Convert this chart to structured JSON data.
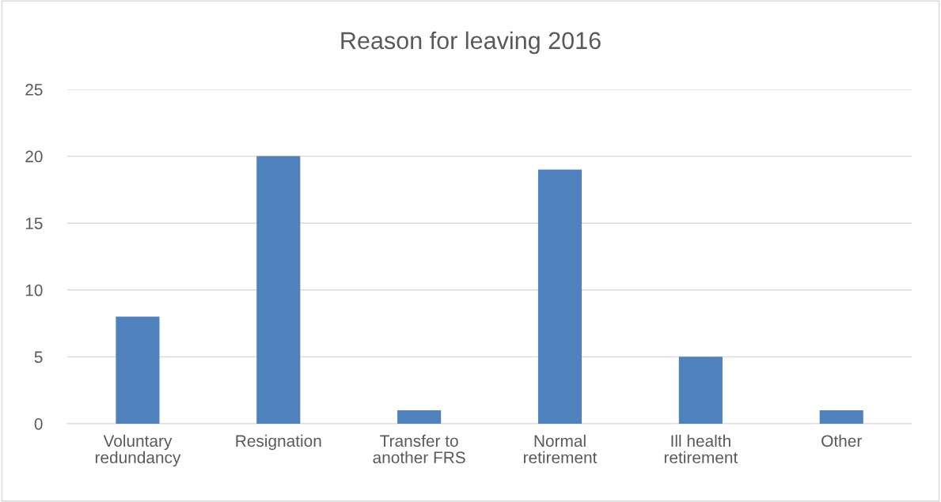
{
  "chart_data": {
    "type": "bar",
    "title": "Reason for leaving 2016",
    "categories": [
      "Voluntary\nredundancy",
      "Resignation",
      "Transfer to\nanother FRS",
      "Normal\nretirement",
      "Ill health\nretirement",
      "Other"
    ],
    "values": [
      8,
      20,
      1,
      19,
      5,
      1
    ],
    "color": "#4f81bd",
    "ylim": [
      0,
      25
    ],
    "yticks": [
      0,
      5,
      10,
      15,
      20,
      25
    ],
    "grid": "y",
    "legend": false
  }
}
